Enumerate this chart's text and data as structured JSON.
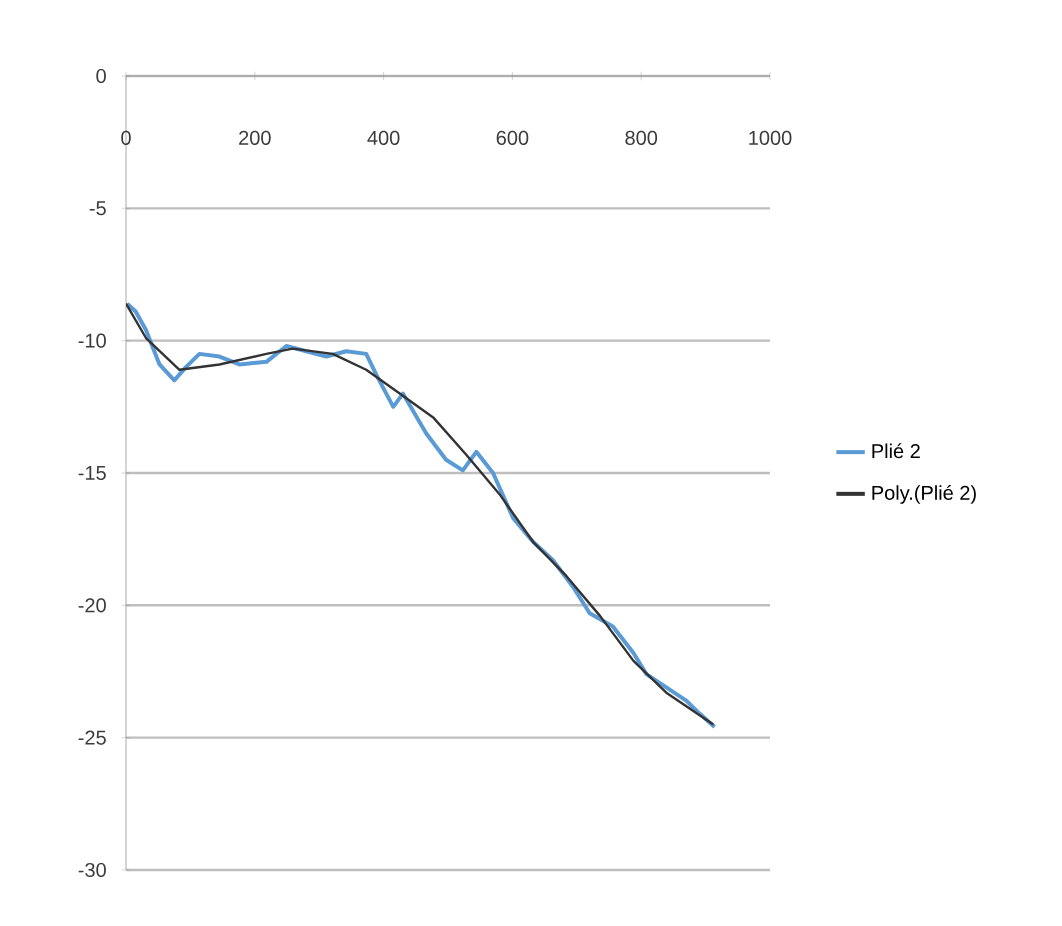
{
  "chart_data": {
    "type": "line",
    "xlim": [
      0,
      1000
    ],
    "ylim": [
      -30,
      0
    ],
    "xticks": [
      0,
      200,
      400,
      600,
      800,
      1000
    ],
    "yticks": [
      -30,
      -25,
      -20,
      -15,
      -10,
      -5,
      0
    ],
    "grid": "y",
    "legend": "right",
    "marker": "none",
    "line_style": "solid",
    "series": [
      {
        "name": "Plié 2",
        "color": "#5b9bd5",
        "x": [
          2,
          15,
          31,
          52,
          75,
          93,
          114,
          145,
          176,
          218,
          249,
          280,
          311,
          342,
          373,
          389,
          415,
          430,
          466,
          497,
          523,
          544,
          570,
          601,
          632,
          663,
          694,
          720,
          756,
          788,
          808,
          839,
          870,
          891,
          914
        ],
        "values": [
          -8.6,
          -8.9,
          -9.6,
          -10.9,
          -11.5,
          -11.0,
          -10.5,
          -10.6,
          -10.9,
          -10.8,
          -10.2,
          -10.4,
          -10.6,
          -10.4,
          -10.5,
          -11.3,
          -12.5,
          -12.0,
          -13.5,
          -14.5,
          -14.9,
          -14.2,
          -15.0,
          -16.7,
          -17.6,
          -18.3,
          -19.3,
          -20.3,
          -20.8,
          -21.8,
          -22.6,
          -23.1,
          -23.6,
          -24.1,
          -24.6
        ]
      },
      {
        "name": "Poly.(Plié 2)",
        "color": "#333333",
        "x": [
          0,
          31,
          83,
          145,
          218,
          259,
          321,
          373,
          425,
          477,
          528,
          580,
          632,
          684,
          736,
          788,
          839,
          912
        ],
        "values": [
          -8.6,
          -9.9,
          -11.1,
          -10.9,
          -10.5,
          -10.3,
          -10.5,
          -11.1,
          -12.0,
          -12.9,
          -14.3,
          -15.8,
          -17.6,
          -18.9,
          -20.4,
          -22.1,
          -23.3,
          -24.5
        ]
      }
    ]
  }
}
